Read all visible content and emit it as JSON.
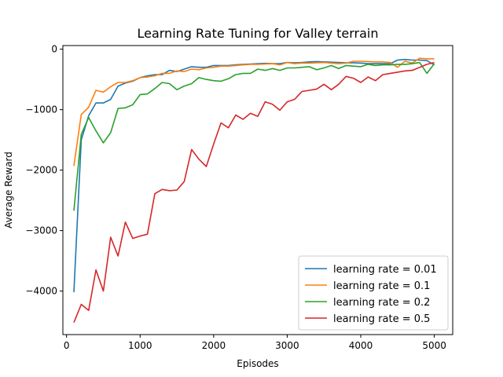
{
  "chart_data": {
    "type": "line",
    "title": "Learning Rate Tuning for Valley terrain",
    "xlabel": "Episodes",
    "ylabel": "Average Reward",
    "xlim": [
      -50,
      5250
    ],
    "ylim": [
      -4720,
      60
    ],
    "xticks": [
      0,
      1000,
      2000,
      3000,
      4000,
      5000
    ],
    "yticks": [
      0,
      -1000,
      -2000,
      -3000,
      -4000
    ],
    "grid": false,
    "legend_position": "lower right",
    "x": [
      100,
      200,
      300,
      400,
      500,
      600,
      700,
      800,
      900,
      1000,
      1100,
      1200,
      1300,
      1400,
      1500,
      1600,
      1700,
      1800,
      1900,
      2000,
      2100,
      2200,
      2300,
      2400,
      2500,
      2600,
      2700,
      2800,
      2900,
      3000,
      3100,
      3200,
      3300,
      3400,
      3500,
      3600,
      3700,
      3800,
      3900,
      4000,
      4100,
      4200,
      4300,
      4400,
      4500,
      4600,
      4700,
      4800,
      4900,
      5000
    ],
    "series": [
      {
        "name": "learning rate = 0.01",
        "color": "#1f77b4",
        "values": [
          -4020,
          -1500,
          -1100,
          -890,
          -890,
          -830,
          -610,
          -560,
          -530,
          -470,
          -440,
          -420,
          -420,
          -350,
          -370,
          -330,
          -290,
          -300,
          -300,
          -270,
          -270,
          -270,
          -260,
          -250,
          -245,
          -240,
          -235,
          -240,
          -240,
          -220,
          -225,
          -220,
          -210,
          -205,
          -210,
          -215,
          -220,
          -225,
          -225,
          -230,
          -240,
          -240,
          -240,
          -240,
          -180,
          -170,
          -180,
          -180,
          -190,
          -260
        ]
      },
      {
        "name": "learning rate = 0.1",
        "color": "#ff7f0e",
        "values": [
          -1930,
          -1080,
          -960,
          -680,
          -710,
          -620,
          -550,
          -550,
          -520,
          -470,
          -460,
          -440,
          -400,
          -400,
          -360,
          -370,
          -330,
          -340,
          -310,
          -300,
          -280,
          -280,
          -270,
          -260,
          -250,
          -250,
          -245,
          -240,
          -260,
          -220,
          -240,
          -230,
          -230,
          -225,
          -220,
          -230,
          -240,
          -230,
          -200,
          -200,
          -205,
          -210,
          -210,
          -220,
          -300,
          -200,
          -230,
          -150,
          -160,
          -160
        ]
      },
      {
        "name": "learning rate = 0.2",
        "color": "#2ca02c",
        "values": [
          -2670,
          -1410,
          -1130,
          -1350,
          -1550,
          -1380,
          -980,
          -970,
          -920,
          -750,
          -740,
          -650,
          -550,
          -570,
          -670,
          -610,
          -570,
          -470,
          -500,
          -520,
          -530,
          -490,
          -420,
          -400,
          -400,
          -330,
          -350,
          -320,
          -350,
          -310,
          -310,
          -300,
          -290,
          -340,
          -310,
          -270,
          -320,
          -270,
          -280,
          -290,
          -250,
          -270,
          -260,
          -260,
          -250,
          -250,
          -240,
          -220,
          -400,
          -240
        ]
      },
      {
        "name": "learning rate = 0.5",
        "color": "#d62728",
        "values": [
          -4520,
          -4220,
          -4320,
          -3650,
          -4000,
          -3110,
          -3420,
          -2860,
          -3130,
          -3090,
          -3060,
          -2390,
          -2320,
          -2340,
          -2330,
          -2190,
          -1660,
          -1820,
          -1940,
          -1570,
          -1220,
          -1300,
          -1090,
          -1160,
          -1060,
          -1110,
          -870,
          -910,
          -1010,
          -870,
          -830,
          -700,
          -680,
          -660,
          -580,
          -670,
          -580,
          -450,
          -480,
          -550,
          -460,
          -520,
          -420,
          -400,
          -380,
          -360,
          -350,
          -300,
          -250,
          -220
        ]
      }
    ]
  }
}
